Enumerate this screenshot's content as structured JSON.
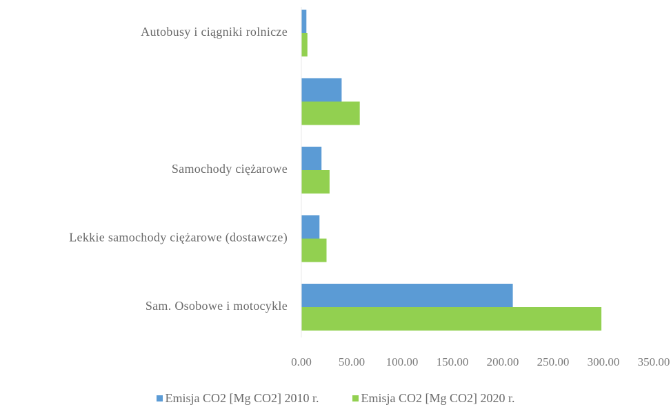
{
  "chart_data": {
    "type": "bar",
    "orientation": "horizontal",
    "title": "",
    "xlabel": "",
    "ylabel": "",
    "categories": [
      "Autobusy i ciągniki rolnicze",
      "",
      "Samochody ciężarowe",
      "Lekkie samochody ciężarowe (dostawcze)",
      "Sam. Osobowe i motocykle"
    ],
    "series": [
      {
        "name": "Emisja CO2 [Mg CO2] 2010 r.",
        "color": "#5b9bd5",
        "values": [
          5,
          40,
          20,
          18,
          210
        ]
      },
      {
        "name": "Emisja CO2 [Mg CO2] 2020 r.",
        "color": "#92d050",
        "values": [
          6,
          58,
          28,
          25,
          298
        ]
      }
    ],
    "xlim": [
      0,
      350
    ],
    "xticks": [
      "0.00",
      "50.00",
      "100.00",
      "150.00",
      "200.00",
      "250.00",
      "300.00",
      "350.00"
    ],
    "grid": false,
    "legend_position": "bottom"
  }
}
